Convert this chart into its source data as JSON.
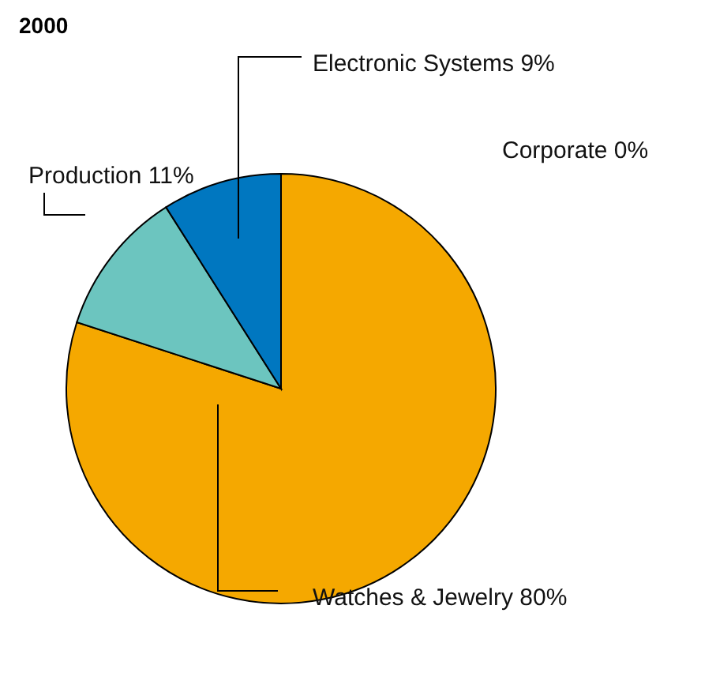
{
  "chart_data": {
    "type": "pie",
    "title": "2000",
    "categories": [
      "Watches & Jewelry",
      "Production",
      "Electronic Systems",
      "Corporate"
    ],
    "values": [
      80,
      11,
      9,
      0
    ],
    "colors": [
      "#f5a800",
      "#6cc5bf",
      "#0077c0",
      "#999999"
    ],
    "value_labels": [
      "80%",
      "11%",
      "9%",
      "0%"
    ]
  }
}
